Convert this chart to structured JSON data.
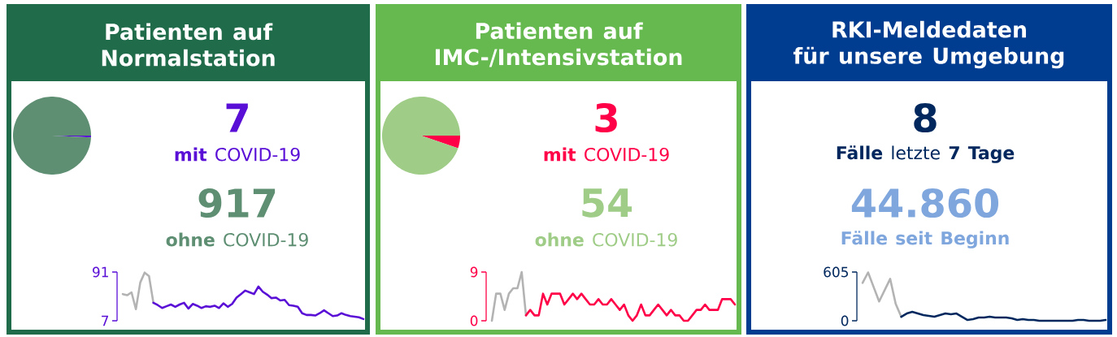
{
  "chart_data": [
    {
      "type": "pie",
      "title": "Patienten auf Normalstation",
      "categories": [
        "**mit** COVID-19",
        "**ohne** COVID-19"
      ],
      "values": [
        7,
        917
      ],
      "value_labels": [
        "7",
        "917"
      ],
      "colors": [
        "#5a0fd6",
        "#5e8f73"
      ]
    },
    {
      "type": "line",
      "categories": [
        null,
        null,
        null,
        null,
        null,
        null,
        null,
        null,
        null,
        null,
        null,
        null,
        null,
        null,
        null,
        null,
        null,
        null,
        null,
        null,
        null,
        null,
        null,
        null,
        null,
        null,
        null,
        null,
        null,
        null,
        null,
        null,
        null,
        null,
        null,
        null,
        null,
        null,
        null,
        null,
        null,
        null,
        null,
        null,
        null,
        null,
        null,
        null,
        null,
        null,
        null,
        null,
        null,
        null,
        null,
        null
      ],
      "ylim": [
        7,
        91
      ],
      "yticks": [
        7,
        91
      ],
      "tick_labels": "y",
      "series": [
        {
          "color": "#b3b3b3",
          "values": [
            53,
            51,
            56,
            27,
            73,
            90,
            84,
            38,
            null,
            null,
            null,
            null,
            null,
            null,
            null,
            null,
            null,
            null,
            null,
            null,
            null,
            null,
            null,
            null,
            null,
            null,
            null,
            null,
            null,
            null,
            null,
            null,
            null,
            null,
            null,
            null,
            null,
            null,
            null,
            null,
            null,
            null,
            null,
            null,
            null,
            null,
            null,
            null,
            null,
            null,
            null,
            null,
            null,
            null,
            null,
            null
          ]
        },
        {
          "color": "#5a0fd6",
          "values": [
            null,
            null,
            null,
            null,
            null,
            null,
            null,
            38,
            34,
            29,
            32,
            35,
            31,
            35,
            38,
            28,
            36,
            33,
            29,
            32,
            31,
            33,
            29,
            37,
            31,
            36,
            47,
            53,
            59,
            56,
            53,
            66,
            57,
            52,
            46,
            47,
            42,
            43,
            34,
            33,
            31,
            20,
            17,
            17,
            16,
            20,
            25,
            20,
            15,
            16,
            20,
            17,
            15,
            14,
            13,
            10
          ]
        }
      ]
    },
    {
      "type": "pie",
      "title": "Patienten auf IMC-/Intensivstation",
      "categories": [
        "**mit** COVID-19",
        "**ohne** COVID-19"
      ],
      "values": [
        3,
        54
      ],
      "value_labels": [
        "3",
        "54"
      ],
      "colors": [
        "#ff0048",
        "#9fcc87"
      ]
    },
    {
      "type": "line",
      "categories": [
        null,
        null,
        null,
        null,
        null,
        null,
        null,
        null,
        null,
        null,
        null,
        null,
        null,
        null,
        null,
        null,
        null,
        null,
        null,
        null,
        null,
        null,
        null,
        null,
        null,
        null,
        null,
        null,
        null,
        null,
        null,
        null,
        null,
        null,
        null,
        null,
        null,
        null,
        null,
        null,
        null,
        null,
        null,
        null,
        null,
        null,
        null,
        null,
        null,
        null,
        null,
        null,
        null,
        null,
        null,
        null,
        null,
        null
      ],
      "ylim": [
        0,
        9
      ],
      "yticks": [
        0,
        9
      ],
      "tick_labels": "y",
      "series": [
        {
          "color": "#b3b3b3",
          "values": [
            0,
            5,
            5,
            2,
            5,
            6,
            6,
            9,
            1,
            null,
            null,
            null,
            null,
            null,
            null,
            null,
            null,
            null,
            null,
            null,
            null,
            null,
            null,
            null,
            null,
            null,
            null,
            null,
            null,
            null,
            null,
            null,
            null,
            null,
            null,
            null,
            null,
            null,
            null,
            null,
            null,
            null,
            null,
            null,
            null,
            null,
            null,
            null,
            null,
            null,
            null,
            null,
            null,
            null,
            null,
            null,
            null,
            null
          ]
        },
        {
          "color": "#ff0048",
          "values": [
            null,
            null,
            null,
            null,
            null,
            null,
            null,
            null,
            1,
            2,
            1,
            1,
            5,
            3,
            5,
            5,
            5,
            3,
            4,
            5,
            4,
            5,
            4,
            3,
            3,
            4,
            3,
            3,
            4,
            3,
            2,
            3,
            1,
            0,
            1,
            3,
            1,
            1,
            2,
            3,
            2,
            1,
            2,
            1,
            1,
            0,
            0,
            1,
            2,
            2,
            3,
            2,
            2,
            2,
            4,
            4,
            4,
            3
          ]
        }
      ]
    },
    {
      "type": "other",
      "title": "RKI-Meldedaten für unsere Umgebung",
      "categories": [
        "**Fälle** letzte **7 Tage**",
        "Fälle seit Beginn"
      ],
      "values": [
        8,
        44860
      ],
      "value_labels": [
        "8",
        "44.860"
      ],
      "colors": [
        "#00285e",
        "#7fa6dd"
      ]
    },
    {
      "type": "line",
      "categories": [
        null,
        null,
        null,
        null,
        null,
        null,
        null,
        null,
        null,
        null,
        null,
        null,
        null,
        null,
        null,
        null,
        null,
        null,
        null,
        null,
        null,
        null,
        null,
        null,
        null,
        null,
        null,
        null,
        null,
        null,
        null,
        null,
        null,
        null,
        null,
        null,
        null,
        null,
        null,
        null,
        null,
        null,
        null,
        null,
        null
      ],
      "ylim": [
        0,
        605
      ],
      "yticks": [
        0,
        605
      ],
      "tick_labels": "y",
      "series": [
        {
          "color": "#b3b3b3",
          "values": [
            470,
            600,
            420,
            240,
            380,
            520,
            210,
            50,
            null,
            null,
            null,
            null,
            null,
            null,
            null,
            null,
            null,
            null,
            null,
            null,
            null,
            null,
            null,
            null,
            null,
            null,
            null,
            null,
            null,
            null,
            null,
            null,
            null,
            null,
            null,
            null,
            null,
            null,
            null,
            null,
            null,
            null,
            null,
            null,
            null
          ]
        },
        {
          "color": "#00285e",
          "values": [
            null,
            null,
            null,
            null,
            null,
            null,
            null,
            50,
            90,
            110,
            90,
            70,
            60,
            50,
            70,
            90,
            80,
            90,
            50,
            10,
            20,
            40,
            40,
            50,
            40,
            40,
            40,
            30,
            10,
            20,
            10,
            10,
            0,
            0,
            0,
            0,
            0,
            0,
            0,
            10,
            10,
            0,
            0,
            0,
            10
          ]
        }
      ]
    }
  ]
}
